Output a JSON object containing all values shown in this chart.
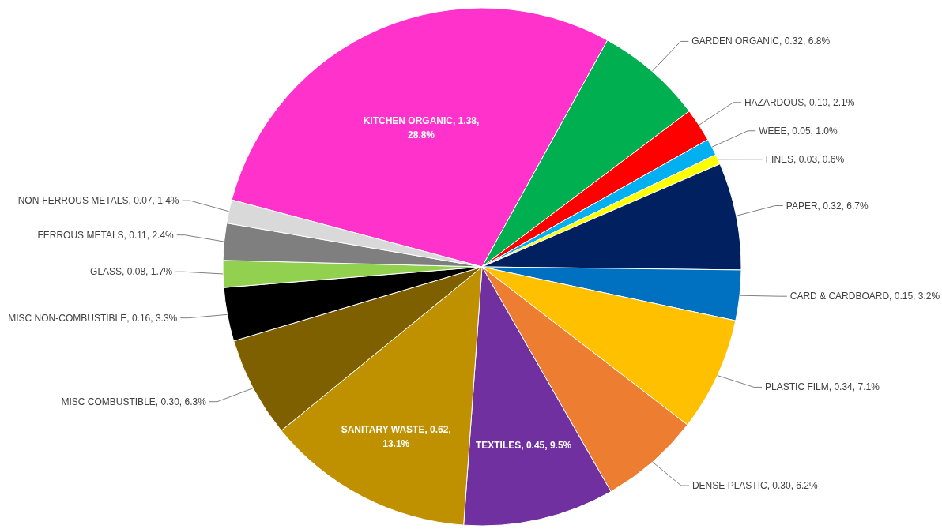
{
  "chart_data": {
    "type": "pie",
    "categories": [
      "KITCHEN ORGANIC",
      "GARDEN ORGANIC",
      "HAZARDOUS",
      "WEEE",
      "FINES",
      "PAPER",
      "CARD & CARDBOARD",
      "PLASTIC FILM",
      "DENSE PLASTIC",
      "TEXTILES",
      "SANITARY WASTE",
      "MISC COMBUSTIBLE",
      "MISC NON-COMBUSTIBLE",
      "GLASS",
      "FERROUS METALS",
      "NON-FERROUS METALS"
    ],
    "values": [
      1.38,
      0.32,
      0.1,
      0.05,
      0.03,
      0.32,
      0.15,
      0.34,
      0.3,
      0.45,
      0.62,
      0.3,
      0.16,
      0.08,
      0.11,
      0.07
    ],
    "value_labels": [
      "1.38, 28.8%",
      "0.32, 6.8%",
      "0.10, 2.1%",
      "0.05, 1.0%",
      "0.03, 0.6%",
      "0.32, 6.7%",
      "0.15, 3.2%",
      "0.34, 7.1%",
      "0.30, 6.2%",
      "0.45, 9.5%",
      "0.62, 13.1%",
      "0.30, 6.3%",
      "0.16, 3.3%",
      "0.08, 1.7%",
      "0.11, 2.4%",
      "0.07, 1.4%"
    ],
    "colors": [
      "#ff33cc",
      "#00b050",
      "#ff0000",
      "#00b0f0",
      "#ffff00",
      "#002060",
      "#0070c0",
      "#ffc000",
      "#ed7d31",
      "#7030a0",
      "#bf9000",
      "#7f6000",
      "#000000",
      "#92d050",
      "#7f7f7f",
      "#d9d9d9"
    ]
  }
}
